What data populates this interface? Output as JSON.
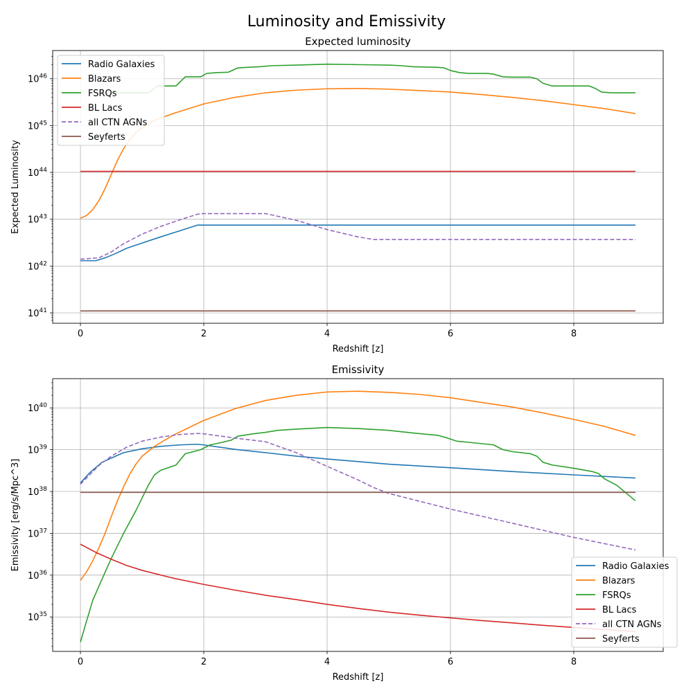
{
  "figure": {
    "suptitle": "Luminosity and Emissivity"
  },
  "colors": {
    "Radio Galaxies": "#1f77b4",
    "Blazars": "#ff7f0e",
    "FSRQs": "#2ca02c",
    "BL Lacs": "#d62728",
    "all CTN AGNs": "#9467bd",
    "Seyferts": "#8c564b"
  },
  "chart_data": [
    {
      "type": "line",
      "title": "Expected luminosity",
      "xlabel": "Redshift [z]",
      "ylabel": "Expected Luminosity",
      "xlim": [
        -0.45,
        9.45
      ],
      "ylim": [
        6e+40,
        4e+46
      ],
      "yscale": "log",
      "xticks": [
        0,
        2,
        4,
        6,
        8
      ],
      "yticks": [
        1e+41,
        1e+42,
        1e+43,
        1e+44,
        1e+45,
        1e+46
      ],
      "ytick_exponents": [
        "41",
        "42",
        "43",
        "44",
        "45",
        "46"
      ],
      "grid": true,
      "legend": "upper left",
      "series": [
        {
          "name": "Radio Galaxies",
          "dash": "solid",
          "points": [
            [
              0,
              1.3e+42
            ],
            [
              0.25,
              1.3e+42
            ],
            [
              0.4,
              1.5e+42
            ],
            [
              0.55,
              1.8e+42
            ],
            [
              0.75,
              2.4e+42
            ],
            [
              1.0,
              3.1e+42
            ],
            [
              1.3,
              4.2e+42
            ],
            [
              1.6,
              5.6e+42
            ],
            [
              1.9,
              7.5e+42
            ],
            [
              9,
              7.5e+42
            ]
          ]
        },
        {
          "name": "Blazars",
          "dash": "solid",
          "points": [
            [
              0,
              1.05e+43
            ],
            [
              0.1,
              1.2e+43
            ],
            [
              0.2,
              1.6e+43
            ],
            [
              0.3,
              2.5e+43
            ],
            [
              0.4,
              4.5e+43
            ],
            [
              0.5,
              9e+43
            ],
            [
              0.6,
              1.8e+44
            ],
            [
              0.7,
              3.2e+44
            ],
            [
              0.8,
              5e+44
            ],
            [
              0.9,
              7e+44
            ],
            [
              1.0,
              9e+44
            ],
            [
              1.2,
              1.3e+45
            ],
            [
              1.5,
              1.8e+45
            ],
            [
              2.0,
              2.9e+45
            ],
            [
              2.5,
              4e+45
            ],
            [
              3.0,
              5e+45
            ],
            [
              3.5,
              5.7e+45
            ],
            [
              4.0,
              6.1e+45
            ],
            [
              4.5,
              6.2e+45
            ],
            [
              5.0,
              6e+45
            ],
            [
              5.5,
              5.6e+45
            ],
            [
              6.0,
              5.2e+45
            ],
            [
              6.5,
              4.6e+45
            ],
            [
              7.0,
              4e+45
            ],
            [
              7.5,
              3.4e+45
            ],
            [
              8.0,
              2.8e+45
            ],
            [
              8.5,
              2.3e+45
            ],
            [
              9.0,
              1.8e+45
            ]
          ]
        },
        {
          "name": "FSRQs",
          "dash": "solid",
          "points": [
            [
              0.45,
              5e+45
            ],
            [
              1.1,
              5e+45
            ],
            [
              1.25,
              7e+45
            ],
            [
              1.55,
              7e+45
            ],
            [
              1.7,
              1.1e+46
            ],
            [
              1.95,
              1.1e+46
            ],
            [
              2.05,
              1.3e+46
            ],
            [
              2.2,
              1.35e+46
            ],
            [
              2.4,
              1.38e+46
            ],
            [
              2.55,
              1.7e+46
            ],
            [
              2.7,
              1.75e+46
            ],
            [
              2.9,
              1.8e+46
            ],
            [
              3.1,
              1.9e+46
            ],
            [
              3.5,
              1.95e+46
            ],
            [
              4.0,
              2.05e+46
            ],
            [
              4.5,
              2e+46
            ],
            [
              5.0,
              1.95e+46
            ],
            [
              5.2,
              1.9e+46
            ],
            [
              5.4,
              1.8e+46
            ],
            [
              5.8,
              1.75e+46
            ],
            [
              5.9,
              1.7e+46
            ],
            [
              6.0,
              1.5e+46
            ],
            [
              6.15,
              1.35e+46
            ],
            [
              6.3,
              1.3e+46
            ],
            [
              6.6,
              1.3e+46
            ],
            [
              6.7,
              1.25e+46
            ],
            [
              6.85,
              1.1e+46
            ],
            [
              7.0,
              1.08e+46
            ],
            [
              7.3,
              1.08e+46
            ],
            [
              7.4,
              1e+46
            ],
            [
              7.5,
              8e+45
            ],
            [
              7.65,
              7e+45
            ],
            [
              8.25,
              7e+45
            ],
            [
              8.35,
              6.2e+45
            ],
            [
              8.45,
              5.2e+45
            ],
            [
              8.6,
              5e+45
            ],
            [
              9.0,
              5e+45
            ]
          ]
        },
        {
          "name": "BL Lacs",
          "dash": "solid",
          "points": [
            [
              0,
              1.05e+44
            ],
            [
              9,
              1.05e+44
            ]
          ]
        },
        {
          "name": "all CTN AGNs",
          "dash": "dashed",
          "points": [
            [
              0,
              1.4e+42
            ],
            [
              0.3,
              1.5e+42
            ],
            [
              0.5,
              2e+42
            ],
            [
              0.7,
              3e+42
            ],
            [
              1.0,
              4.8e+42
            ],
            [
              1.3,
              7e+42
            ],
            [
              1.6,
              9.6e+42
            ],
            [
              1.9,
              1.28e+43
            ],
            [
              2.0,
              1.32e+43
            ],
            [
              3.0,
              1.32e+43
            ],
            [
              3.5,
              9.5e+42
            ],
            [
              4.0,
              6e+42
            ],
            [
              4.5,
              4.2e+42
            ],
            [
              4.75,
              3.7e+42
            ],
            [
              9.0,
              3.7e+42
            ]
          ]
        },
        {
          "name": "Seyferts",
          "dash": "solid",
          "points": [
            [
              0,
              1.1e+41
            ],
            [
              9,
              1.1e+41
            ]
          ]
        }
      ]
    },
    {
      "type": "line",
      "title": "Emissivity",
      "xlabel": "Redshift [z]",
      "ylabel": "Emissivity [erg/s/Mpc^3]",
      "xlim": [
        -0.45,
        9.45
      ],
      "ylim": [
        1.5e+34,
        5e+40
      ],
      "yscale": "log",
      "xticks": [
        0,
        2,
        4,
        6,
        8
      ],
      "yticks": [
        1e+35,
        1e+36,
        1e+37,
        1e+38,
        1e+39,
        1e+40
      ],
      "ytick_exponents": [
        "35",
        "36",
        "37",
        "38",
        "39",
        "40"
      ],
      "grid": true,
      "legend": "lower right",
      "series": [
        {
          "name": "Radio Galaxies",
          "dash": "solid",
          "points": [
            [
              0,
              1.6e+38
            ],
            [
              0.15,
              2.8e+38
            ],
            [
              0.35,
              5e+38
            ],
            [
              0.5,
              6.3e+38
            ],
            [
              0.7,
              8.5e+38
            ],
            [
              1.0,
              1.05e+39
            ],
            [
              1.3,
              1.2e+39
            ],
            [
              1.6,
              1.3e+39
            ],
            [
              1.9,
              1.35e+39
            ],
            [
              2.0,
              1.3e+39
            ],
            [
              2.5,
              1.02e+39
            ],
            [
              3.0,
              8.5e+38
            ],
            [
              3.5,
              7e+38
            ],
            [
              4.0,
              6e+38
            ],
            [
              5.0,
              4.5e+38
            ],
            [
              6.0,
              3.7e+38
            ],
            [
              7.0,
              3e+38
            ],
            [
              8.0,
              2.5e+38
            ],
            [
              9.0,
              2.1e+38
            ]
          ]
        },
        {
          "name": "Blazars",
          "dash": "solid",
          "points": [
            [
              0,
              7.5e+35
            ],
            [
              0.1,
              1.2e+36
            ],
            [
              0.2,
              2.2e+36
            ],
            [
              0.3,
              4.5e+36
            ],
            [
              0.4,
              1e+37
            ],
            [
              0.5,
              2.5e+37
            ],
            [
              0.6,
              6e+37
            ],
            [
              0.7,
              1.3e+38
            ],
            [
              0.8,
              2.6e+38
            ],
            [
              0.9,
              4.5e+38
            ],
            [
              1.0,
              7e+38
            ],
            [
              1.2,
              1.2e+39
            ],
            [
              1.5,
              2.2e+39
            ],
            [
              2.0,
              5e+39
            ],
            [
              2.5,
              9.5e+39
            ],
            [
              3.0,
              1.5e+40
            ],
            [
              3.5,
              2e+40
            ],
            [
              4.0,
              2.4e+40
            ],
            [
              4.5,
              2.5e+40
            ],
            [
              5.0,
              2.35e+40
            ],
            [
              5.5,
              2.1e+40
            ],
            [
              6.0,
              1.75e+40
            ],
            [
              6.5,
              1.35e+40
            ],
            [
              7.0,
              1.05e+40
            ],
            [
              7.5,
              7.6e+39
            ],
            [
              8.0,
              5.3e+39
            ],
            [
              8.5,
              3.6e+39
            ],
            [
              9.0,
              2.2e+39
            ]
          ]
        },
        {
          "name": "FSRQs",
          "dash": "solid",
          "points": [
            [
              0,
              2.5e+34
            ],
            [
              0.1,
              8e+34
            ],
            [
              0.2,
              2.5e+35
            ],
            [
              0.35,
              8e+35
            ],
            [
              0.5,
              2.5e+36
            ],
            [
              0.7,
              1e+37
            ],
            [
              0.9,
              3.5e+37
            ],
            [
              1.1,
              1.4e+38
            ],
            [
              1.2,
              2.5e+38
            ],
            [
              1.3,
              3.2e+38
            ],
            [
              1.55,
              4.3e+38
            ],
            [
              1.7,
              8e+38
            ],
            [
              1.95,
              1e+39
            ],
            [
              2.1,
              1.3e+39
            ],
            [
              2.3,
              1.5e+39
            ],
            [
              2.45,
              1.7e+39
            ],
            [
              2.55,
              2.1e+39
            ],
            [
              2.8,
              2.4e+39
            ],
            [
              3.0,
              2.6e+39
            ],
            [
              3.2,
              2.9e+39
            ],
            [
              3.5,
              3.1e+39
            ],
            [
              4.0,
              3.4e+39
            ],
            [
              4.5,
              3.2e+39
            ],
            [
              5.0,
              2.9e+39
            ],
            [
              5.4,
              2.5e+39
            ],
            [
              5.8,
              2.2e+39
            ],
            [
              5.95,
              1.9e+39
            ],
            [
              6.1,
              1.6e+39
            ],
            [
              6.3,
              1.5e+39
            ],
            [
              6.6,
              1.35e+39
            ],
            [
              6.7,
              1.3e+39
            ],
            [
              6.85,
              1e+39
            ],
            [
              7.0,
              9e+38
            ],
            [
              7.3,
              8e+38
            ],
            [
              7.4,
              7e+38
            ],
            [
              7.5,
              5e+38
            ],
            [
              7.65,
              4.3e+38
            ],
            [
              8.0,
              3.6e+38
            ],
            [
              8.3,
              3e+38
            ],
            [
              8.4,
              2.7e+38
            ],
            [
              8.5,
              2e+38
            ],
            [
              8.7,
              1.4e+38
            ],
            [
              9.0,
              6e+37
            ]
          ]
        },
        {
          "name": "BL Lacs",
          "dash": "solid",
          "points": [
            [
              0,
              5.5e+36
            ],
            [
              0.25,
              3.5e+36
            ],
            [
              0.5,
              2.4e+36
            ],
            [
              0.75,
              1.7e+36
            ],
            [
              1.0,
              1.3e+36
            ],
            [
              1.5,
              8.5e+35
            ],
            [
              2.0,
              6e+35
            ],
            [
              2.5,
              4.4e+35
            ],
            [
              3.0,
              3.3e+35
            ],
            [
              3.5,
              2.6e+35
            ],
            [
              4.0,
              2e+35
            ],
            [
              4.5,
              1.6e+35
            ],
            [
              5.0,
              1.3e+35
            ],
            [
              5.5,
              1.1e+35
            ],
            [
              6.0,
              9.5e+34
            ],
            [
              6.5,
              8.2e+34
            ],
            [
              7.0,
              7.2e+34
            ],
            [
              7.5,
              6.3e+34
            ],
            [
              8.0,
              5.6e+34
            ],
            [
              8.5,
              5e+34
            ],
            [
              9.0,
              4.5e+34
            ]
          ]
        },
        {
          "name": "all CTN AGNs",
          "dash": "dashed",
          "points": [
            [
              0,
              1.5e+38
            ],
            [
              0.15,
              2.5e+38
            ],
            [
              0.3,
              4.2e+38
            ],
            [
              0.5,
              7e+38
            ],
            [
              0.75,
              1.15e+39
            ],
            [
              1.0,
              1.6e+39
            ],
            [
              1.3,
              2e+39
            ],
            [
              1.6,
              2.3e+39
            ],
            [
              1.9,
              2.45e+39
            ],
            [
              2.0,
              2.4e+39
            ],
            [
              2.5,
              1.9e+39
            ],
            [
              3.0,
              1.55e+39
            ],
            [
              3.5,
              8.5e+38
            ],
            [
              4.0,
              4e+38
            ],
            [
              4.5,
              1.9e+38
            ],
            [
              4.75,
              1.25e+38
            ],
            [
              5.0,
              9e+37
            ],
            [
              6.0,
              3.8e+37
            ],
            [
              7.0,
              1.75e+37
            ],
            [
              8.0,
              8e+36
            ],
            [
              9.0,
              4e+36
            ]
          ]
        },
        {
          "name": "Seyferts",
          "dash": "solid",
          "points": [
            [
              0,
              9.5e+37
            ],
            [
              9,
              9.5e+37
            ]
          ]
        }
      ]
    }
  ]
}
